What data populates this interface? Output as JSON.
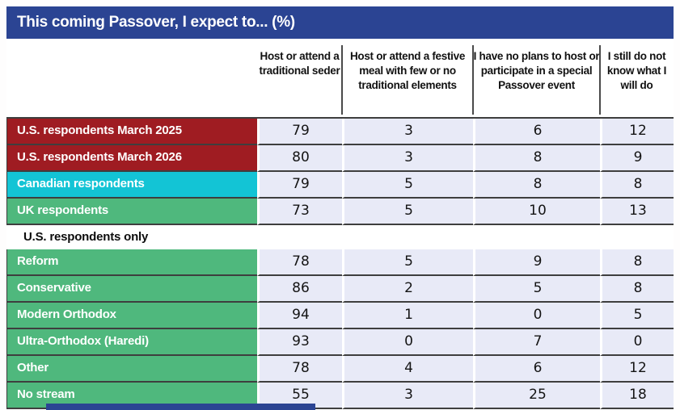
{
  "title": "This coming Passover, I expect to... (%)",
  "columns": [
    "Host or attend a traditional seder",
    "Host or attend a festive meal with few or no traditional elements",
    "I have no plans to host or participate in a special Passover event",
    "I still do not know what I will do"
  ],
  "rows": [
    {
      "label": "U.S. respondents March 2025",
      "color_key": "us_red",
      "values": [
        "79",
        "3",
        "6",
        "12"
      ]
    },
    {
      "label": "U.S. respondents March 2026",
      "color_key": "us_red",
      "values": [
        "80",
        "3",
        "8",
        "9"
      ]
    },
    {
      "label": "Canadian respondents",
      "color_key": "canada_cyan",
      "values": [
        "79",
        "5",
        "8",
        "8"
      ]
    },
    {
      "label": "UK respondents",
      "color_key": "green",
      "values": [
        "73",
        "5",
        "10",
        "13"
      ]
    },
    {
      "type": "section",
      "label": "U.S. respondents only"
    },
    {
      "label": "Reform",
      "color_key": "green",
      "values": [
        "78",
        "5",
        "9",
        "8"
      ]
    },
    {
      "label": "Conservative",
      "color_key": "green",
      "values": [
        "86",
        "2",
        "5",
        "8"
      ]
    },
    {
      "label": "Modern Orthodox",
      "color_key": "green",
      "values": [
        "94",
        "1",
        "0",
        "5"
      ]
    },
    {
      "label": "Ultra-Orthodox (Haredi)",
      "color_key": "green",
      "values": [
        "93",
        "0",
        "7",
        "0"
      ]
    },
    {
      "label": "Other",
      "color_key": "green",
      "values": [
        "78",
        "4",
        "6",
        "12"
      ]
    },
    {
      "label": "No stream",
      "color_key": "green",
      "values": [
        "55",
        "3",
        "25",
        "18"
      ]
    }
  ],
  "colors": {
    "header_blue": "#2b4493",
    "us_red": "#9f1c22",
    "canada_cyan": "#13c4d5",
    "green": "#4fb87d",
    "cell_lavender": "#e8eaf7",
    "divider": "#3e3e3e"
  },
  "chart_data": {
    "type": "table",
    "title": "This coming Passover, I expect to... (%)",
    "columns": [
      "Host or attend a traditional seder",
      "Host or attend a festive meal with few or no traditional elements",
      "I have no plans to host or participate in a special Passover event",
      "I still do not know what I will do"
    ],
    "section_label": "U.S. respondents only",
    "rows": [
      {
        "label": "U.S. respondents March 2025",
        "group": "all-respondents",
        "values": [
          79,
          3,
          6,
          12
        ]
      },
      {
        "label": "U.S. respondents March 2026",
        "group": "all-respondents",
        "values": [
          80,
          3,
          8,
          9
        ]
      },
      {
        "label": "Canadian respondents",
        "group": "all-respondents",
        "values": [
          79,
          5,
          8,
          8
        ]
      },
      {
        "label": "UK respondents",
        "group": "all-respondents",
        "values": [
          73,
          5,
          10,
          13
        ]
      },
      {
        "label": "Reform",
        "group": "U.S. respondents only",
        "values": [
          78,
          5,
          9,
          8
        ]
      },
      {
        "label": "Conservative",
        "group": "U.S. respondents only",
        "values": [
          86,
          2,
          5,
          8
        ]
      },
      {
        "label": "Modern Orthodox",
        "group": "U.S. respondents only",
        "values": [
          94,
          1,
          0,
          5
        ]
      },
      {
        "label": "Ultra-Orthodox (Haredi)",
        "group": "U.S. respondents only",
        "values": [
          93,
          0,
          7,
          0
        ]
      },
      {
        "label": "Other",
        "group": "U.S. respondents only",
        "values": [
          78,
          4,
          6,
          12
        ]
      },
      {
        "label": "No stream",
        "group": "U.S. respondents only",
        "values": [
          55,
          3,
          25,
          18
        ]
      }
    ]
  }
}
